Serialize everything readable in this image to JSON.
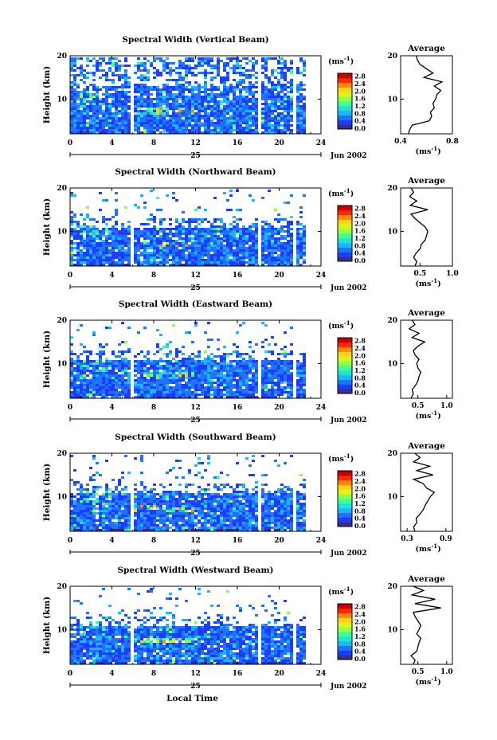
{
  "figure": {
    "xlabel": "Local Time",
    "date_label": "Jun 2002",
    "day_label": "25",
    "ylabel": "Height (km)",
    "colorbar_unit": "(ms",
    "colorbar_unit_exp": "-1",
    "colorbar_unit_close": ")",
    "colorbar_ticks": [
      "0.0",
      "0.4",
      "0.8",
      "1.2",
      "1.6",
      "2.0",
      "2.4",
      "2.8"
    ],
    "avg_title": "Average",
    "avg_xunit": "(ms",
    "avg_xunit_exp": "-1",
    "avg_xunit_close": ")",
    "colorscale": [
      "#3a2f86",
      "#1c3cff",
      "#1f73ff",
      "#1fb4ff",
      "#23e3d6",
      "#3dff9a",
      "#8fff4a",
      "#d9f51a",
      "#ffd21a",
      "#ff8a0a",
      "#ff2a00",
      "#c80000"
    ]
  },
  "chart_data": [
    {
      "type": "heatmap",
      "title": "Spectral Width (Vertical Beam)",
      "xlim": [
        0,
        24
      ],
      "xticks": [
        0,
        4,
        8,
        12,
        16,
        20,
        24
      ],
      "ylim": [
        2,
        20
      ],
      "yticks": [
        10,
        20
      ],
      "clim": [
        0,
        2.8
      ],
      "data_gaps_hours": [
        [
          5.9,
          6.2
        ],
        [
          17.9,
          18.2
        ],
        [
          21.3,
          21.6
        ]
      ],
      "data_end_hour": 22.6,
      "average_profile": {
        "xlim": [
          0.4,
          0.8
        ],
        "xticks": [
          "0.4",
          "0.8"
        ],
        "height_km": [
          2,
          3,
          4,
          5,
          6,
          7,
          8,
          9,
          10,
          11,
          12,
          13,
          14,
          15,
          16,
          17,
          18,
          19,
          20
        ],
        "values": [
          0.46,
          0.47,
          0.49,
          0.62,
          0.64,
          0.63,
          0.66,
          0.65,
          0.67,
          0.68,
          0.71,
          0.66,
          0.72,
          0.58,
          0.65,
          0.6,
          0.55,
          0.53,
          0.52
        ]
      }
    },
    {
      "type": "heatmap",
      "title": "Spectral Width (Northward Beam)",
      "xlim": [
        0,
        24
      ],
      "xticks": [
        0,
        4,
        8,
        12,
        16,
        20,
        24
      ],
      "ylim": [
        2,
        20
      ],
      "yticks": [
        10,
        20
      ],
      "clim": [
        0,
        2.8
      ],
      "data_gaps_hours": [
        [
          5.9,
          6.2
        ],
        [
          17.9,
          18.2
        ],
        [
          21.3,
          21.6
        ]
      ],
      "data_end_hour": 22.6,
      "average_profile": {
        "xlim": [
          0.2,
          1.0
        ],
        "xticks": [
          "0.5",
          "1.0"
        ],
        "height_km": [
          2,
          3,
          4,
          5,
          6,
          7,
          8,
          9,
          10,
          11,
          12,
          13,
          14,
          15,
          16,
          17,
          18,
          19,
          20
        ],
        "values": [
          0.42,
          0.45,
          0.4,
          0.44,
          0.5,
          0.52,
          0.58,
          0.6,
          0.62,
          0.58,
          0.5,
          0.42,
          0.36,
          0.62,
          0.35,
          0.45,
          0.34,
          0.4,
          0.36
        ]
      }
    },
    {
      "type": "heatmap",
      "title": "Spectral Width (Eastward Beam)",
      "xlim": [
        0,
        24
      ],
      "xticks": [
        0,
        4,
        8,
        12,
        16,
        20,
        24
      ],
      "ylim": [
        2,
        20
      ],
      "yticks": [
        10,
        20
      ],
      "clim": [
        0,
        2.8
      ],
      "data_gaps_hours": [
        [
          5.9,
          6.2
        ],
        [
          17.9,
          18.2
        ],
        [
          21.3,
          21.6
        ]
      ],
      "data_end_hour": 22.6,
      "average_profile": {
        "xlim": [
          0.2,
          1.1
        ],
        "xticks": [
          "0.5",
          "1.0"
        ],
        "height_km": [
          2,
          3,
          4,
          5,
          6,
          7,
          8,
          9,
          10,
          11,
          12,
          13,
          14,
          15,
          16,
          17,
          18,
          19,
          20
        ],
        "values": [
          0.38,
          0.42,
          0.4,
          0.46,
          0.5,
          0.52,
          0.55,
          0.5,
          0.48,
          0.52,
          0.45,
          0.42,
          0.5,
          0.62,
          0.4,
          0.52,
          0.35,
          0.45,
          0.4
        ]
      }
    },
    {
      "type": "heatmap",
      "title": "Spectral Width (Southward Beam)",
      "xlim": [
        0,
        24
      ],
      "xticks": [
        0,
        4,
        8,
        12,
        16,
        20,
        24
      ],
      "ylim": [
        2,
        20
      ],
      "yticks": [
        10,
        20
      ],
      "clim": [
        0,
        2.8
      ],
      "data_gaps_hours": [
        [
          5.9,
          6.2
        ],
        [
          17.9,
          18.2
        ],
        [
          21.3,
          21.6
        ]
      ],
      "data_end_hour": 22.6,
      "average_profile": {
        "xlim": [
          0.2,
          1.0
        ],
        "xticks": [
          "0.3",
          "0.9"
        ],
        "height_km": [
          2,
          3,
          4,
          5,
          6,
          7,
          8,
          9,
          10,
          11,
          12,
          13,
          14,
          15,
          16,
          17,
          18,
          19,
          20
        ],
        "values": [
          0.42,
          0.4,
          0.45,
          0.44,
          0.5,
          0.55,
          0.58,
          0.62,
          0.66,
          0.72,
          0.6,
          0.55,
          0.4,
          0.7,
          0.45,
          0.65,
          0.4,
          0.5,
          0.42
        ]
      }
    },
    {
      "type": "heatmap",
      "title": "Spectral Width (Westward Beam)",
      "xlim": [
        0,
        24
      ],
      "xticks": [
        0,
        4,
        8,
        12,
        16,
        20,
        24
      ],
      "ylim": [
        2,
        20
      ],
      "yticks": [
        10,
        20
      ],
      "clim": [
        0,
        2.8
      ],
      "data_gaps_hours": [
        [
          5.9,
          6.2
        ],
        [
          17.9,
          18.2
        ],
        [
          21.3,
          21.6
        ]
      ],
      "data_end_hour": 22.6,
      "average_profile": {
        "xlim": [
          0.2,
          1.1
        ],
        "xticks": [
          "0.5",
          "1.0"
        ],
        "height_km": [
          2,
          3,
          4,
          5,
          6,
          7,
          8,
          9,
          10,
          11,
          12,
          13,
          14,
          15,
          16,
          17,
          18,
          19,
          20
        ],
        "values": [
          0.42,
          0.45,
          0.38,
          0.48,
          0.5,
          0.52,
          0.55,
          0.48,
          0.52,
          0.55,
          0.5,
          0.45,
          0.42,
          0.9,
          0.45,
          0.8,
          0.4,
          0.6,
          0.42
        ]
      }
    }
  ]
}
